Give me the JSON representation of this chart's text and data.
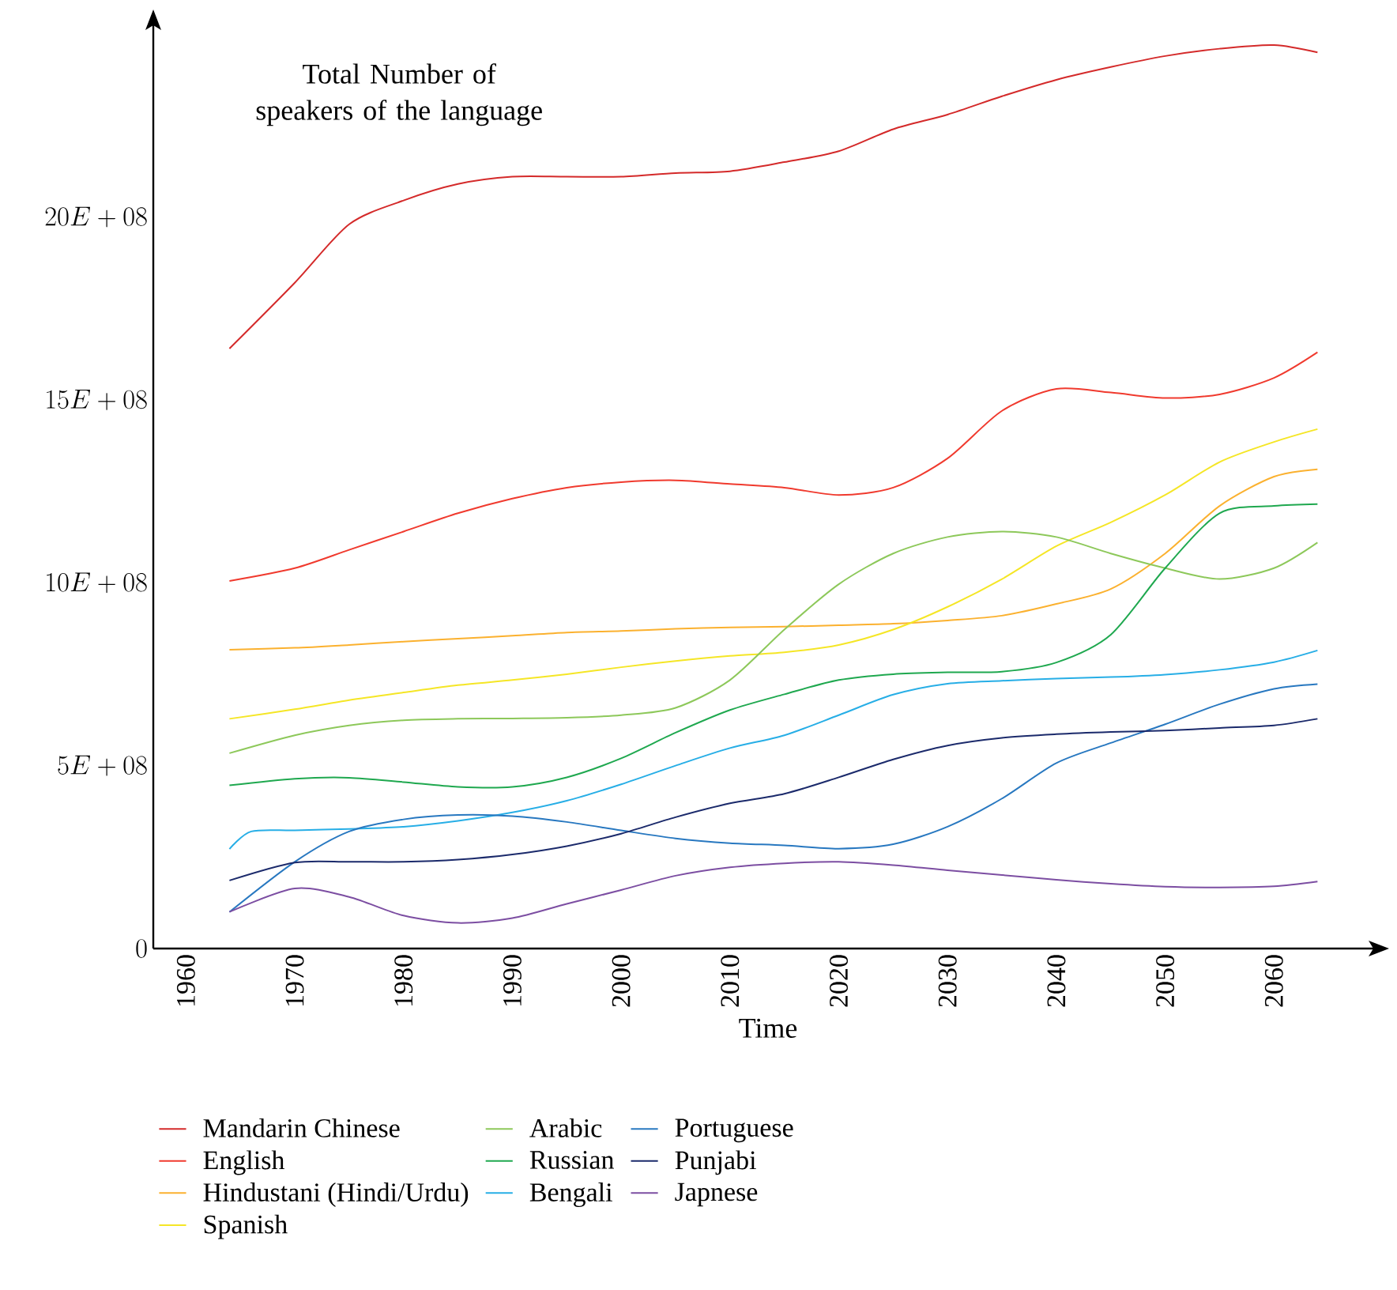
{
  "chart_data": {
    "type": "line",
    "xlabel": "Time",
    "ylabel": "Total Number of speakers of the language",
    "x": [
      1964,
      1970,
      1975,
      1980,
      1985,
      1990,
      1995,
      2000,
      2005,
      2010,
      2015,
      2020,
      2025,
      2030,
      2035,
      2040,
      2045,
      2050,
      2055,
      2060,
      2064
    ],
    "xlim": [
      1957,
      2070
    ],
    "xticks": [
      1960,
      1970,
      1980,
      1990,
      2000,
      2010,
      2020,
      2030,
      2040,
      2050,
      2060
    ],
    "ylim": [
      0,
      2550000000.0
    ],
    "yticks": [
      {
        "value": 0,
        "label": "0"
      },
      {
        "value": 500000000,
        "label": "5E+08"
      },
      {
        "value": 1000000000,
        "label": "10E+08"
      },
      {
        "value": 1500000000,
        "label": "15E+08"
      },
      {
        "value": 2000000000,
        "label": "20E+08"
      }
    ],
    "legend": "bottom",
    "series": [
      {
        "name": "Mandarin Chinese",
        "color": "#d42a2a",
        "values": [
          1640000000.0,
          1820000000.0,
          1980000000.0,
          2045000000.0,
          2090000000.0,
          2110000000.0,
          2110000000.0,
          2110000000.0,
          2120000000.0,
          2125000000.0,
          2150000000.0,
          2180000000.0,
          2240000000.0,
          2280000000.0,
          2330000000.0,
          2375000000.0,
          2410000000.0,
          2440000000.0,
          2460000000.0,
          2470000000.0,
          2450000000.0
        ]
      },
      {
        "name": "English",
        "color": "#f03a2e",
        "values": [
          1005000000.0,
          1040000000.0,
          1090000000.0,
          1140000000.0,
          1190000000.0,
          1230000000.0,
          1260000000.0,
          1275000000.0,
          1280000000.0,
          1270000000.0,
          1260000000.0,
          1240000000.0,
          1260000000.0,
          1340000000.0,
          1470000000.0,
          1530000000.0,
          1520000000.0,
          1505000000.0,
          1515000000.0,
          1560000000.0,
          1630000000.0
        ]
      },
      {
        "name": "Hindustani (Hindi/Urdu)",
        "color": "#fbb12f",
        "values": [
          817000000.0,
          822000000.0,
          830000000.0,
          839000000.0,
          847000000.0,
          855000000.0,
          864000000.0,
          868000000.0,
          874000000.0,
          878000000.0,
          880000000.0,
          884000000.0,
          888000000.0,
          897000000.0,
          910000000.0,
          942000000.0,
          983000000.0,
          1080000000.0,
          1210000000.0,
          1290000000.0,
          1310000000.0
        ]
      },
      {
        "name": "Spanish",
        "color": "#f5e626",
        "values": [
          628000000.0,
          654000000.0,
          679000000.0,
          700000000.0,
          720000000.0,
          734000000.0,
          750000000.0,
          769000000.0,
          786000000.0,
          800000000.0,
          810000000.0,
          830000000.0,
          872000000.0,
          934000000.0,
          1010000000.0,
          1100000000.0,
          1165000000.0,
          1240000000.0,
          1330000000.0,
          1385000000.0,
          1420000000.0
        ]
      },
      {
        "name": "Arabic",
        "color": "#8dc85a",
        "values": [
          534000000.0,
          583000000.0,
          610000000.0,
          624000000.0,
          628000000.0,
          629000000.0,
          631000000.0,
          638000000.0,
          658000000.0,
          734000000.0,
          872000000.0,
          996000000.0,
          1080000000.0,
          1125000000.0,
          1140000000.0,
          1125000000.0,
          1080000000.0,
          1040000000.0,
          1010000000.0,
          1040000000.0,
          1110000000.0
        ]
      },
      {
        "name": "Russian",
        "color": "#1fa84f",
        "values": [
          446000000.0,
          464000000.0,
          467000000.0,
          455000000.0,
          442000000.0,
          442000000.0,
          468000000.0,
          520000000.0,
          590000000.0,
          652000000.0,
          695000000.0,
          734000000.0,
          750000000.0,
          755000000.0,
          757000000.0,
          782000000.0,
          858000000.0,
          1040000000.0,
          1190000000.0,
          1210000000.0,
          1215000000.0
        ]
      },
      {
        "name": "Bengali",
        "color": "#27aee6",
        "x": [
          1964,
          1966,
          1970,
          1975,
          1980,
          1985,
          1990,
          1995,
          2000,
          2005,
          2010,
          2015,
          2020,
          2025,
          2030,
          2035,
          2040,
          2045,
          2050,
          2055,
          2060,
          2064
        ],
        "values": [
          272000000.0,
          320000000.0,
          323000000.0,
          327000000.0,
          333000000.0,
          349000000.0,
          372000000.0,
          404000000.0,
          449000000.0,
          500000000.0,
          548000000.0,
          583000000.0,
          638000000.0,
          694000000.0,
          724000000.0,
          732000000.0,
          738000000.0,
          742000000.0,
          749000000.0,
          762000000.0,
          783000000.0,
          815000000.0
        ]
      },
      {
        "name": "Portuguese",
        "color": "#2878c0",
        "values": [
          100000000.0,
          237000000.0,
          320000000.0,
          353000000.0,
          365000000.0,
          362000000.0,
          346000000.0,
          323000000.0,
          301000000.0,
          288000000.0,
          282000000.0,
          273000000.0,
          285000000.0,
          333000000.0,
          410000000.0,
          507000000.0,
          562000000.0,
          613000000.0,
          668000000.0,
          710000000.0,
          723000000.0
        ]
      },
      {
        "name": "Punjabi",
        "color": "#1b2a6b",
        "values": [
          186000000.0,
          235000000.0,
          237000000.0,
          237000000.0,
          243000000.0,
          257000000.0,
          280000000.0,
          314000000.0,
          359000000.0,
          397000000.0,
          423000000.0,
          468000000.0,
          517000000.0,
          555000000.0,
          576000000.0,
          586000000.0,
          592000000.0,
          596000000.0,
          603000000.0,
          610000000.0,
          628000000.0
        ]
      },
      {
        "name": "Japnese",
        "color": "#7c4ea2",
        "values": [
          100000000.0,
          164000000.0,
          141000000.0,
          90000000.0,
          70000000.0,
          83000000.0,
          122000000.0,
          160000000.0,
          199000000.0,
          222000000.0,
          233000000.0,
          237000000.0,
          228000000.0,
          214000000.0,
          201000000.0,
          188000000.0,
          177000000.0,
          169000000.0,
          167000000.0,
          170000000.0,
          183000000.0
        ]
      }
    ]
  }
}
